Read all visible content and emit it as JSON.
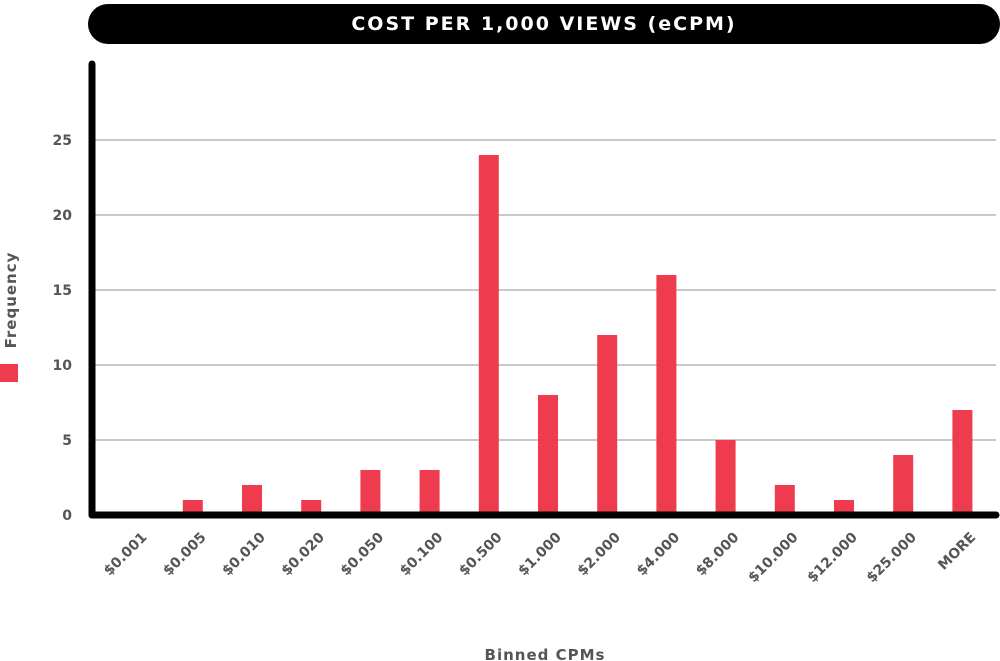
{
  "chart_data": {
    "type": "bar",
    "title": "COST PER 1,000 VIEWS (eCPM)",
    "xlabel": "Binned CPMs",
    "ylabel": "Frequency",
    "categories": [
      "$0.001",
      "$0.005",
      "$0.010",
      "$0.020",
      "$0.050",
      "$0.100",
      "$0.500",
      "$1.000",
      "$2.000",
      "$4.000",
      "$8.000",
      "$10.000",
      "$12.000",
      "$25.000",
      "MORE"
    ],
    "values": [
      0,
      1,
      2,
      1,
      3,
      3,
      24,
      8,
      12,
      16,
      5,
      2,
      1,
      4,
      7
    ],
    "yticks": [
      0,
      5,
      10,
      15,
      20,
      25
    ],
    "ylim": [
      0,
      30
    ],
    "grid": true,
    "legend": "left",
    "bar_color": "#ef3b4e"
  }
}
